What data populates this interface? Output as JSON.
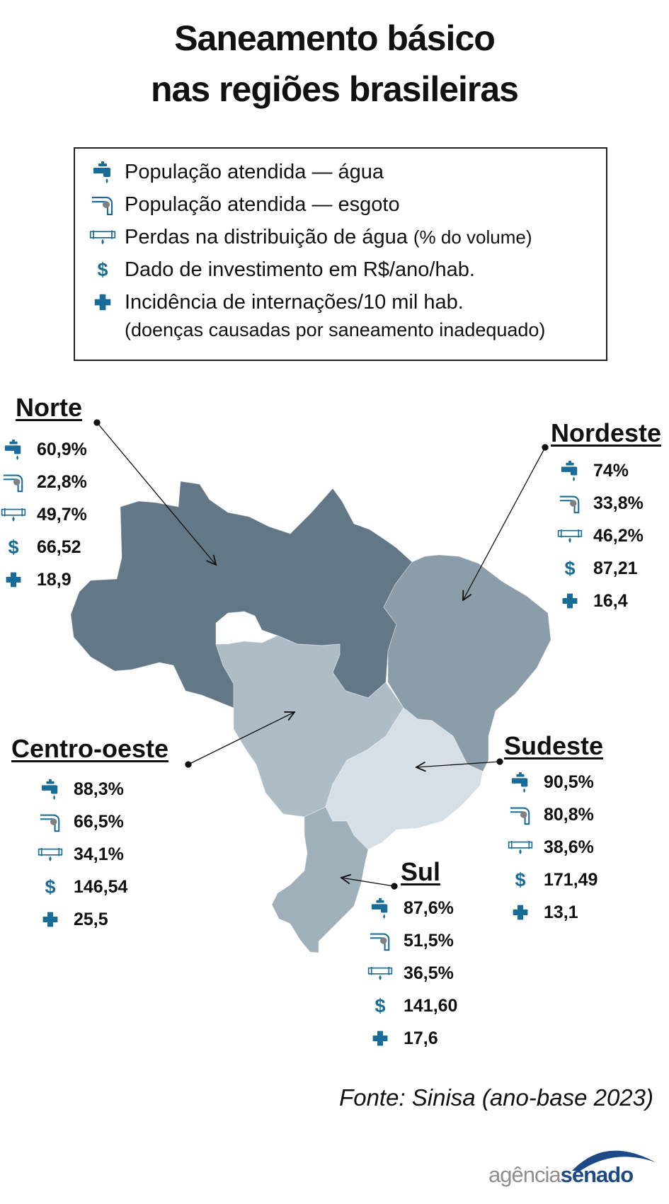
{
  "title_line1": "Saneamento básico",
  "title_line2": "nas regiões brasileiras",
  "legend": {
    "items": [
      {
        "icon": "water-tap-icon",
        "label": "População atendida — água"
      },
      {
        "icon": "sewage-pipe-icon",
        "label": "População atendida — esgoto"
      },
      {
        "icon": "leaking-pipe-icon",
        "label": "Perdas na distribuição de água",
        "note": "(% do volume)"
      },
      {
        "icon": "dollar-icon",
        "label": "Dado de investimento em R$/ano/hab."
      },
      {
        "icon": "cross-icon",
        "label": "Incidência de internações/10 mil hab."
      }
    ],
    "subnote": "(doenças causadas por saneamento inadequado)"
  },
  "icon_symbols": {
    "dollar": "$"
  },
  "colors": {
    "icon_blue": "#1a6c98",
    "norte": "#637887",
    "nordeste": "#8a9da9",
    "centro_oeste": "#aebcc6",
    "sudeste": "#d6dfe5",
    "sul": "#9fb0bb"
  },
  "regions": {
    "norte": {
      "name": "Norte",
      "water": "60,9%",
      "sewage": "22,8%",
      "losses": "49,7%",
      "investment": "66,52",
      "hospitalizations": "18,9"
    },
    "nordeste": {
      "name": "Nordeste",
      "water": "74%",
      "sewage": "33,8%",
      "losses": "46,2%",
      "investment": "87,21",
      "hospitalizations": "16,4"
    },
    "centro_oeste": {
      "name": "Centro-oeste",
      "water": "88,3%",
      "sewage": "66,5%",
      "losses": "34,1%",
      "investment": "146,54",
      "hospitalizations": "25,5"
    },
    "sudeste": {
      "name": "Sudeste",
      "water": "90,5%",
      "sewage": "80,8%",
      "losses": "38,6%",
      "investment": "171,49",
      "hospitalizations": "13,1"
    },
    "sul": {
      "name": "Sul",
      "water": "87,6%",
      "sewage": "51,5%",
      "losses": "36,5%",
      "investment": "141,60",
      "hospitalizations": "17,6"
    }
  },
  "source": "Fonte: Sinisa (ano-base 2023)",
  "brand": {
    "part1": "agência",
    "part2": "senado"
  }
}
